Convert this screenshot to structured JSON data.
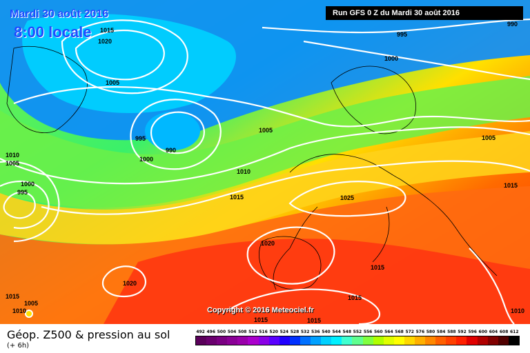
{
  "header": {
    "date_line": "Mardi 30 août 2016",
    "time_line": "8:00 locale",
    "run_info": "Run GFS 0 Z du Mardi 30 août 2016"
  },
  "copyright": "Copyright © 2016 Meteociel.fr",
  "footer": {
    "title": "Géop. Z500 & pression au sol",
    "subtitle": "(+ 6h)"
  },
  "legend": {
    "labels": [
      "492",
      "496",
      "500",
      "504",
      "508",
      "512",
      "516",
      "520",
      "524",
      "528",
      "532",
      "536",
      "540",
      "544",
      "548",
      "552",
      "556",
      "560",
      "564",
      "568",
      "572",
      "576",
      "580",
      "584",
      "588",
      "592",
      "596",
      "600",
      "604",
      "608",
      "612"
    ],
    "colors": [
      "#5a005a",
      "#6a006e",
      "#7a0082",
      "#8a0096",
      "#9a00aa",
      "#aa00cc",
      "#8a00e6",
      "#5a00ff",
      "#2000ff",
      "#0030ff",
      "#0070ff",
      "#00a0ff",
      "#00d0ff",
      "#00f0ff",
      "#40ffd0",
      "#60ff90",
      "#80ff40",
      "#b0ff00",
      "#e0ff00",
      "#ffff00",
      "#ffd800",
      "#ffb000",
      "#ff8800",
      "#ff6000",
      "#ff4000",
      "#ff2000",
      "#e00000",
      "#b00000",
      "#800000",
      "#500000",
      "#000000"
    ]
  },
  "isobars": [
    {
      "label": "1015",
      "color": "#ffffff"
    },
    {
      "label": "1020",
      "color": "#ffffff"
    },
    {
      "label": "1005",
      "color": "#ffffff"
    },
    {
      "label": "995",
      "color": "#ffffff"
    },
    {
      "label": "990",
      "color": "#ffffff"
    },
    {
      "label": "1000",
      "color": "#ffffff"
    },
    {
      "label": "1005",
      "color": "#ffffff"
    },
    {
      "label": "1010",
      "color": "#ffffff"
    },
    {
      "label": "1000",
      "color": "#ffffff"
    },
    {
      "label": "995",
      "color": "#ffffff"
    },
    {
      "label": "995",
      "color": "#ffffff"
    },
    {
      "label": "990",
      "color": "#ffffff"
    },
    {
      "label": "1000",
      "color": "#ffffff"
    },
    {
      "label": "1005",
      "color": "#ffffff"
    },
    {
      "label": "1010",
      "color": "#ffffff"
    },
    {
      "label": "1015",
      "color": "#ffffff"
    },
    {
      "label": "1025",
      "color": "#ffffff"
    },
    {
      "label": "1005",
      "color": "#ffffff"
    },
    {
      "label": "1015",
      "color": "#ffffff"
    },
    {
      "label": "1020",
      "color": "#ffffff"
    },
    {
      "label": "1015",
      "color": "#ffffff"
    },
    {
      "label": "1020",
      "color": "#ffffff"
    },
    {
      "label": "1015",
      "color": "#ffffff"
    },
    {
      "label": "1005",
      "color": "#ffffff"
    },
    {
      "label": "1010",
      "color": "#ffffff"
    },
    {
      "label": "1015",
      "color": "#ffffff"
    },
    {
      "label": "1010",
      "color": "#ffffff"
    },
    {
      "label": "1015",
      "color": "#ffffff"
    },
    {
      "label": "1015",
      "color": "#ffffff"
    }
  ]
}
